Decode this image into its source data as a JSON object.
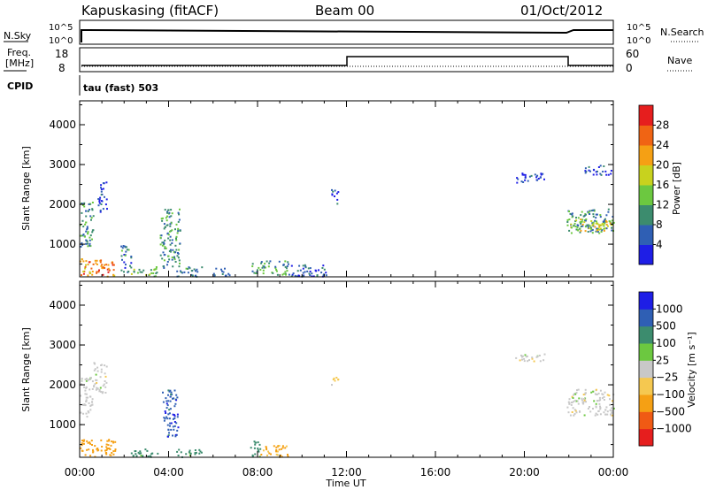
{
  "header": {
    "station": "Kapuskasing (fitACF)",
    "beam": "Beam 00",
    "date": "01/Oct/2012"
  },
  "meta_panels": {
    "nsky_label": "N.Sky",
    "nsearch_label": "N.Search",
    "noise_ticks_left": [
      "10^5",
      "10^0"
    ],
    "noise_ticks_right": [
      "10^5",
      "10^0"
    ],
    "freq_label_1": "Freq.",
    "freq_label_2": "[MHz]",
    "freq_ticks": [
      "18",
      "8"
    ],
    "nave_label": "Nave",
    "nave_ticks": [
      "60",
      "0"
    ],
    "cpid_label": "CPID",
    "program": "tau (fast) 503"
  },
  "time_axis": {
    "label": "Time UT",
    "ticks": [
      "00:00",
      "04:00",
      "08:00",
      "12:00",
      "16:00",
      "20:00",
      "00:00"
    ]
  },
  "colors": {
    "power_scale": [
      "#1e1ee6",
      "#2f5fb4",
      "#3c8c6e",
      "#6cc840",
      "#c8d21e",
      "#f5a014",
      "#f06414",
      "#e61e1e"
    ],
    "velocity_scale": [
      "#e61e1e",
      "#f05a14",
      "#f5a014",
      "#f5c850",
      "#c8c8c8",
      "#6cc840",
      "#3c8c6e",
      "#2f5fb4",
      "#1e1ee6"
    ]
  },
  "chart_data": [
    {
      "type": "heatmap",
      "title": "",
      "xlabel": "Time UT",
      "ylabel": "Slant Range [km]",
      "xlim": [
        0,
        24
      ],
      "ylim": [
        180,
        4600
      ],
      "x_ticks": [
        "00:00",
        "04:00",
        "08:00",
        "12:00",
        "16:00",
        "20:00",
        "00:00"
      ],
      "y_ticks": [
        1000,
        2000,
        3000,
        4000
      ],
      "colorbar": {
        "label": "Power [dB]",
        "ticks": [
          4,
          8,
          12,
          16,
          20,
          24,
          28
        ],
        "range": [
          0,
          32
        ]
      },
      "regions": [
        {
          "t": [
            0.0,
            1.6
          ],
          "r": [
            200,
            650
          ],
          "value": 24
        },
        {
          "t": [
            0.0,
            0.6
          ],
          "r": [
            900,
            2100
          ],
          "value": 10
        },
        {
          "t": [
            0.8,
            1.2
          ],
          "r": [
            1800,
            2600
          ],
          "value": 4
        },
        {
          "t": [
            1.8,
            2.3
          ],
          "r": [
            300,
            1000
          ],
          "value": 8
        },
        {
          "t": [
            2.3,
            3.5
          ],
          "r": [
            200,
            450
          ],
          "value": 12
        },
        {
          "t": [
            3.6,
            4.5
          ],
          "r": [
            400,
            1900
          ],
          "value": 10
        },
        {
          "t": [
            4.3,
            5.5
          ],
          "r": [
            200,
            450
          ],
          "value": 8
        },
        {
          "t": [
            6.0,
            6.8
          ],
          "r": [
            220,
            420
          ],
          "value": 6
        },
        {
          "t": [
            7.7,
            9.4
          ],
          "r": [
            250,
            600
          ],
          "value": 10
        },
        {
          "t": [
            9.4,
            11.2
          ],
          "r": [
            200,
            500
          ],
          "value": 6
        },
        {
          "t": [
            11.3,
            11.6
          ],
          "r": [
            2000,
            2400
          ],
          "value": 4
        },
        {
          "t": [
            19.5,
            20.9
          ],
          "r": [
            2550,
            2800
          ],
          "value": 4
        },
        {
          "t": [
            22.7,
            23.9
          ],
          "r": [
            2750,
            3000
          ],
          "value": 4
        },
        {
          "t": [
            21.9,
            24.0
          ],
          "r": [
            1300,
            1900
          ],
          "value": 9
        },
        {
          "t": [
            21.9,
            24.0
          ],
          "r": [
            1350,
            1650
          ],
          "value": 18
        }
      ]
    },
    {
      "type": "heatmap",
      "title": "",
      "xlabel": "Time UT",
      "ylabel": "Slant Range [km]",
      "xlim": [
        0,
        24
      ],
      "ylim": [
        180,
        4600
      ],
      "x_ticks": [
        "00:00",
        "04:00",
        "08:00",
        "12:00",
        "16:00",
        "20:00",
        "00:00"
      ],
      "y_ticks": [
        1000,
        2000,
        3000,
        4000
      ],
      "colorbar": {
        "label": "Velocity [m s⁻¹]",
        "ticks": [
          1000,
          500,
          100,
          25,
          -25,
          -100,
          -500,
          -1000
        ]
      },
      "regions": [
        {
          "t": [
            0.0,
            1.6
          ],
          "r": [
            200,
            650
          ],
          "value": -200
        },
        {
          "t": [
            0.0,
            0.6
          ],
          "r": [
            1200,
            2200
          ],
          "value": 0
        },
        {
          "t": [
            0.6,
            1.2
          ],
          "r": [
            1800,
            2600
          ],
          "value": 0
        },
        {
          "t": [
            2.2,
            3.5
          ],
          "r": [
            200,
            400
          ],
          "value": 150
        },
        {
          "t": [
            3.7,
            4.4
          ],
          "r": [
            700,
            1900
          ],
          "value": 800
        },
        {
          "t": [
            4.3,
            5.5
          ],
          "r": [
            200,
            400
          ],
          "value": 150
        },
        {
          "t": [
            7.6,
            8.1
          ],
          "r": [
            200,
            600
          ],
          "value": 150
        },
        {
          "t": [
            8.1,
            9.4
          ],
          "r": [
            200,
            500
          ],
          "value": -100
        },
        {
          "t": [
            11.3,
            11.6
          ],
          "r": [
            2000,
            2300
          ],
          "value": -50
        },
        {
          "t": [
            19.5,
            20.9
          ],
          "r": [
            2600,
            2800
          ],
          "value": 0
        },
        {
          "t": [
            21.9,
            24.0
          ],
          "r": [
            1250,
            1900
          ],
          "value": 0
        }
      ]
    }
  ]
}
